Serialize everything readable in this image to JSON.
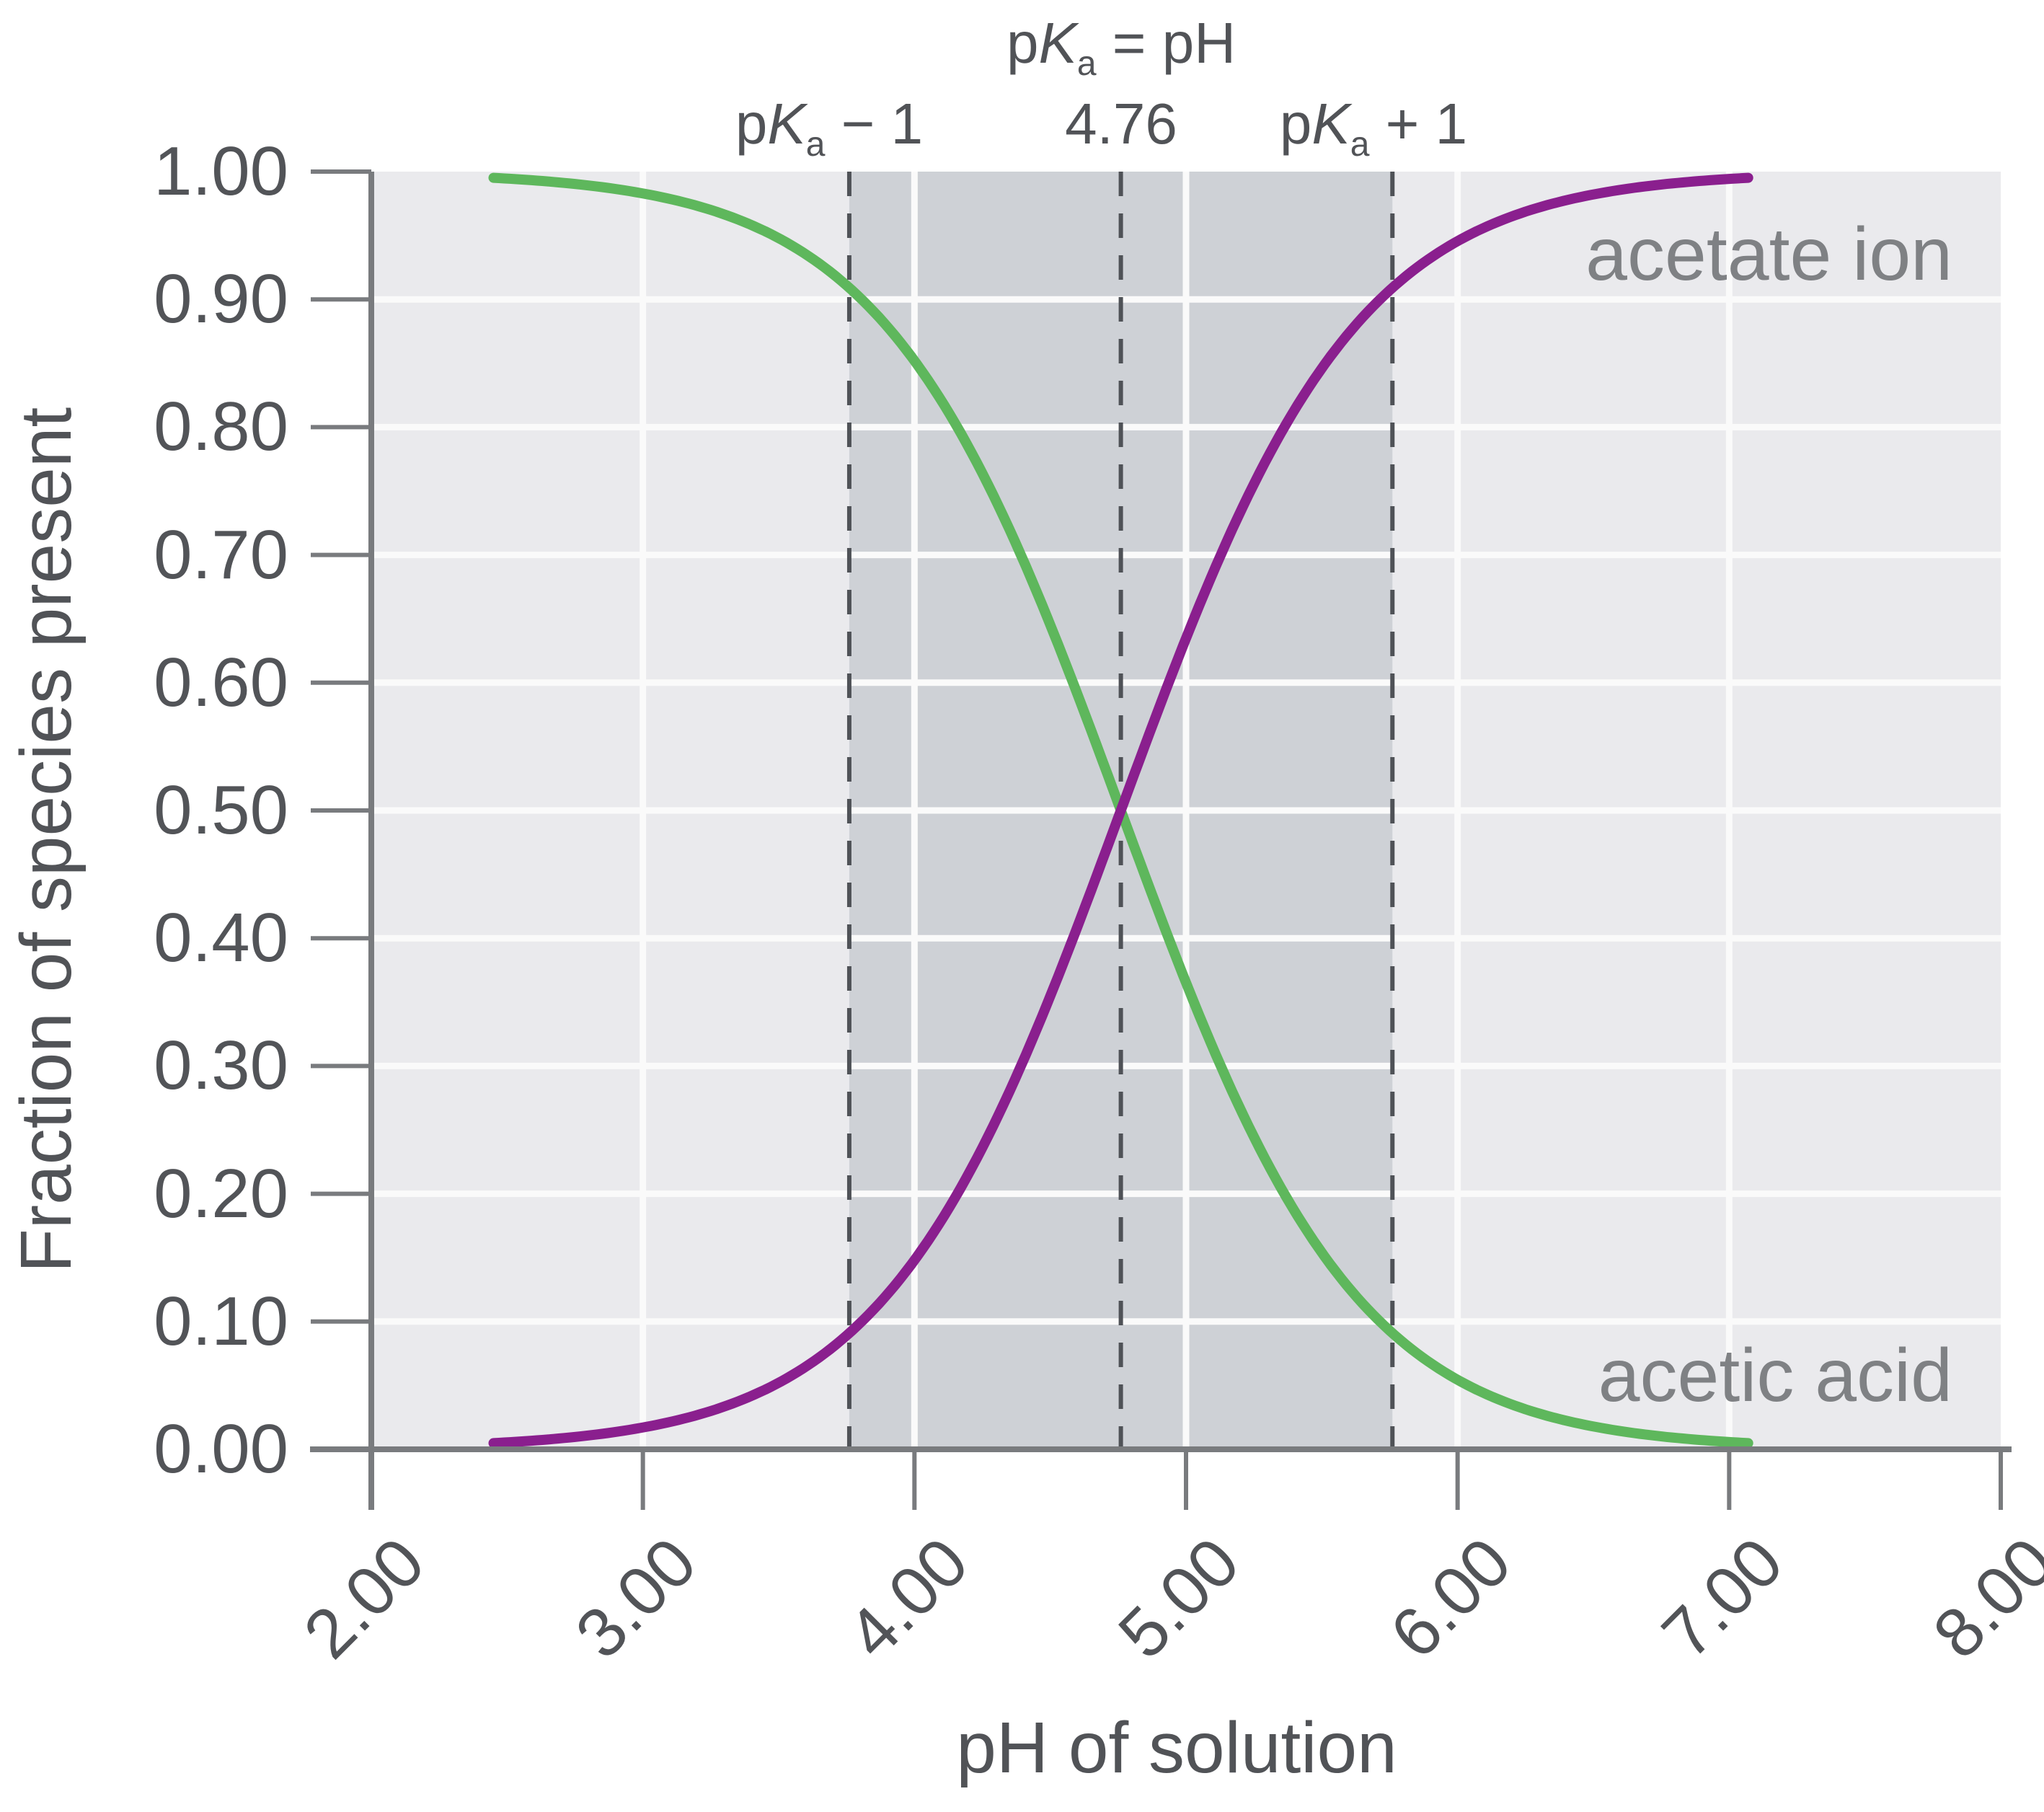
{
  "axes": {
    "x_title": "pH of solution",
    "y_title": "Fraction of species present",
    "x_tick_labels": [
      "2.00",
      "3.00",
      "4.00",
      "5.00",
      "6.00",
      "7.00",
      "8.00"
    ],
    "y_tick_labels": [
      "0.00",
      "0.10",
      "0.20",
      "0.30",
      "0.40",
      "0.50",
      "0.60",
      "0.70",
      "0.80",
      "0.90",
      "1.00"
    ]
  },
  "annotations": {
    "pka_equation": {
      "p": "p",
      "K": "K",
      "sub": "a",
      "rest": " = pH"
    },
    "pka_value": "4.76",
    "pka_minus": {
      "p": "p",
      "K": "K",
      "sub": "a",
      "rest": " − 1"
    },
    "pka_plus": {
      "p": "p",
      "K": "K",
      "sub": "a",
      "rest": " + 1"
    },
    "acetate_label": "acetate ion",
    "acid_label": "acetic acid"
  },
  "colors": {
    "acetate_curve": "#8a1f8e",
    "acid_curve": "#5eb75c",
    "plot_bg": "#eaeaed",
    "buffer_band": "#ced1d6",
    "gridline": "#fafafa",
    "axis": "#797b7e",
    "dashed_line": "#4f5257",
    "tick_text": "#525458",
    "series_label_text": "#7f8184"
  },
  "chart_data": {
    "type": "line",
    "title": "",
    "xlabel": "pH of solution",
    "ylabel": "Fraction of species present",
    "xlim": [
      2.0,
      8.0
    ],
    "ylim": [
      0.0,
      1.0
    ],
    "x_tick_values": [
      2.0,
      3.0,
      4.0,
      5.0,
      6.0,
      7.0,
      8.0
    ],
    "y_tick_values": [
      0.0,
      0.1,
      0.2,
      0.3,
      0.4,
      0.5,
      0.6,
      0.7,
      0.8,
      0.9,
      1.0
    ],
    "grid": true,
    "legend_position": "labels-inside-plot",
    "pka": 4.76,
    "curve_ph_range": [
      2.45,
      7.07
    ],
    "buffer_band_ph": [
      3.76,
      5.76
    ],
    "dashed_lines_ph": [
      3.76,
      4.76,
      5.76
    ],
    "crossover_point": {
      "x": 4.76,
      "y": 0.5
    },
    "x": [
      2.5,
      2.75,
      3.0,
      3.25,
      3.5,
      3.75,
      4.0,
      4.25,
      4.5,
      4.76,
      5.0,
      5.25,
      5.5,
      5.75,
      6.0,
      6.25,
      6.5,
      6.75,
      7.0
    ],
    "series": [
      {
        "name": "acetate ion",
        "color": "#8a1f8e",
        "values": [
          0.005,
          0.01,
          0.017,
          0.03,
          0.052,
          0.089,
          0.148,
          0.236,
          0.355,
          0.5,
          0.635,
          0.755,
          0.846,
          0.907,
          0.946,
          0.969,
          0.982,
          0.99,
          0.994
        ]
      },
      {
        "name": "acetic acid",
        "color": "#5eb75c",
        "values": [
          0.995,
          0.99,
          0.983,
          0.97,
          0.948,
          0.911,
          0.852,
          0.764,
          0.645,
          0.5,
          0.365,
          0.245,
          0.154,
          0.093,
          0.054,
          0.031,
          0.018,
          0.01,
          0.006
        ]
      }
    ]
  }
}
